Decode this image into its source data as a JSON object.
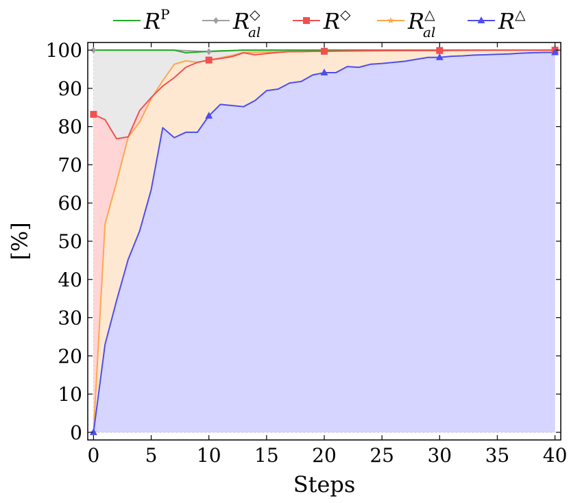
{
  "chart_data": {
    "type": "area",
    "title": "",
    "xlabel": "Steps",
    "ylabel": "[%]",
    "xlim": [
      -0.5,
      40.5
    ],
    "ylim": [
      -2,
      102
    ],
    "xticks": [
      0,
      5,
      10,
      15,
      20,
      25,
      30,
      35,
      40
    ],
    "yticks": [
      0,
      10,
      20,
      30,
      40,
      50,
      60,
      70,
      80,
      90,
      100
    ],
    "grid": false,
    "legend_position": "top",
    "series": [
      {
        "name": "R",
        "sup": "P",
        "sub": "",
        "color": "#22aa22",
        "fill": "#e9e9e9",
        "marker": "none",
        "marker_x": [],
        "x": [
          0,
          7,
          8,
          9,
          10,
          11,
          12,
          13,
          15,
          20,
          30,
          40
        ],
        "y": [
          100,
          100,
          99.3,
          99.5,
          99.7,
          99.8,
          99.9,
          100,
          100,
          100,
          100,
          100
        ]
      },
      {
        "name": "R",
        "sup": "◇",
        "sub": "al",
        "color": "#a0a0a0",
        "fill": "#e9e9e9",
        "marker": "diamond",
        "marker_x": [
          0,
          10,
          20,
          30,
          40
        ],
        "x": [
          0,
          7,
          10,
          13,
          20,
          30,
          40
        ],
        "y": [
          100,
          100,
          99.6,
          100,
          100,
          100,
          100
        ]
      },
      {
        "name": "R",
        "sup": "◇",
        "sub": "",
        "color": "#f05050",
        "fill": "#ffd5d5",
        "marker": "square",
        "marker_x": [
          0,
          10,
          20,
          30,
          40
        ],
        "x": [
          0,
          1,
          2,
          3,
          4,
          5,
          6,
          7,
          8,
          9,
          10,
          11,
          12,
          13,
          14,
          15,
          16,
          17,
          18,
          19,
          20,
          22,
          25,
          30,
          35,
          40
        ],
        "y": [
          83.2,
          81.8,
          76.8,
          77.3,
          84.2,
          87.6,
          90.6,
          92.8,
          95.5,
          96.8,
          97.4,
          97.8,
          98.3,
          99.3,
          98.8,
          99.1,
          99.4,
          99.6,
          99.6,
          99.7,
          99.7,
          99.8,
          99.9,
          99.9,
          100,
          100
        ]
      },
      {
        "name": "R",
        "sup": "△",
        "sub": "al",
        "color": "#ffa64d",
        "fill": "#ffe8d2",
        "marker": "star",
        "marker_x": [
          0,
          10,
          20,
          30,
          40
        ],
        "x": [
          0,
          1,
          2,
          3,
          4,
          5,
          6,
          7,
          8,
          9,
          10,
          11,
          12,
          13,
          15,
          17,
          20,
          25,
          30,
          35,
          40
        ],
        "y": [
          0,
          54.5,
          65.5,
          77.2,
          81.2,
          87.3,
          92.0,
          96.3,
          97.2,
          96.8,
          97.4,
          98.0,
          98.6,
          99.4,
          99.5,
          99.6,
          99.7,
          99.8,
          99.9,
          100,
          100
        ]
      },
      {
        "name": "R",
        "sup": "△",
        "sub": "",
        "color": "#4d4df0",
        "fill": "#d5d5ff",
        "marker": "triangle",
        "marker_x": [
          0,
          10,
          20,
          30,
          40
        ],
        "x": [
          0,
          1,
          2,
          3,
          4,
          5,
          6,
          7,
          8,
          9,
          10,
          11,
          12,
          13,
          14,
          15,
          16,
          17,
          18,
          19,
          20,
          21,
          22,
          23,
          24,
          25,
          26,
          27,
          28,
          29,
          30,
          31,
          32,
          33,
          34,
          35,
          36,
          37,
          38,
          39,
          40
        ],
        "y": [
          0,
          23.0,
          34.5,
          45.2,
          52.7,
          63.5,
          79.7,
          77.1,
          78.5,
          78.5,
          82.8,
          85.8,
          85.5,
          85.2,
          86.8,
          89.4,
          89.8,
          91.4,
          91.8,
          93.5,
          94.1,
          94.1,
          95.7,
          95.5,
          96.3,
          96.5,
          96.8,
          97.1,
          97.6,
          98.1,
          98.1,
          98.4,
          98.5,
          98.7,
          98.8,
          98.9,
          99.0,
          99.2,
          99.3,
          99.4,
          99.4
        ]
      }
    ]
  }
}
